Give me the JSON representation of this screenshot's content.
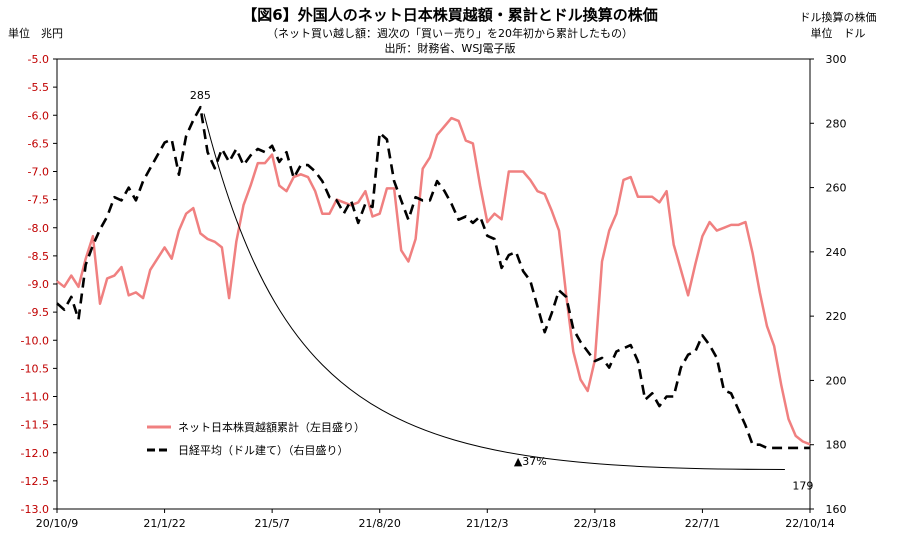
{
  "chart_data": {
    "type": "line",
    "title": "【図6】外国人のネット日本株買越額・累計とドル換算の株価",
    "subtitle": "（ネット買い越し額：週次の「買い－売り」を20年初から累計したもの）",
    "source": "出所：財務省、WSJ電子版",
    "left_axis_label": "単位　兆円",
    "right_axis_label_1": "ドル換算の株価",
    "right_axis_label_2": "単位　ドル",
    "ylim_left": [
      -13.0,
      -5.0
    ],
    "ylim_right": [
      160,
      300
    ],
    "yticks_left": [
      "-5.0",
      "-5.5",
      "-6.0",
      "-6.5",
      "-7.0",
      "-7.5",
      "-8.0",
      "-8.5",
      "-9.0",
      "-9.5",
      "-10.0",
      "-10.5",
      "-11.0",
      "-11.5",
      "-12.0",
      "-12.5",
      "-13.0"
    ],
    "yticks_right": [
      "300",
      "280",
      "260",
      "240",
      "220",
      "200",
      "180",
      "160"
    ],
    "xticks": [
      "20/10/9",
      "21/1/22",
      "21/5/7",
      "21/8/20",
      "21/12/3",
      "22/3/18",
      "22/7/1",
      "22/10/14"
    ],
    "x_range_weeks": [
      0,
      105
    ],
    "grid": false,
    "legend_position": "bottom-left",
    "series": [
      {
        "name": "ネット日本株買越額累計（左目盛り）",
        "axis": "left",
        "color": "#f08080",
        "style": "solid",
        "x": [
          0,
          1,
          2,
          3,
          4,
          5,
          6,
          7,
          8,
          9,
          10,
          11,
          12,
          13,
          14,
          15,
          16,
          17,
          18,
          19,
          20,
          21,
          22,
          23,
          24,
          25,
          26,
          27,
          28,
          29,
          30,
          31,
          32,
          33,
          34,
          35,
          36,
          37,
          38,
          39,
          40,
          41,
          42,
          43,
          44,
          45,
          46,
          47,
          48,
          49,
          50,
          51,
          52,
          53,
          54,
          55,
          56,
          57,
          58,
          59,
          60,
          61,
          62,
          63,
          64,
          65,
          66,
          67,
          68,
          69,
          70,
          71,
          72,
          73,
          74,
          75,
          76,
          77,
          78,
          79,
          80,
          81,
          82,
          83,
          84,
          85,
          86,
          87,
          88,
          89,
          90,
          91,
          92,
          93,
          94,
          95,
          96,
          97,
          98,
          99,
          100,
          101,
          102,
          103,
          104,
          105
        ],
        "values": [
          -8.95,
          -9.05,
          -8.85,
          -9.05,
          -8.55,
          -8.15,
          -9.35,
          -8.9,
          -8.85,
          -8.7,
          -9.2,
          -9.15,
          -9.25,
          -8.75,
          -8.55,
          -8.35,
          -8.55,
          -8.05,
          -7.75,
          -7.65,
          -8.1,
          -8.2,
          -8.25,
          -8.35,
          -9.25,
          -8.25,
          -7.6,
          -7.25,
          -6.85,
          -6.85,
          -6.7,
          -7.25,
          -7.35,
          -7.1,
          -7.05,
          -7.1,
          -7.35,
          -7.75,
          -7.75,
          -7.5,
          -7.55,
          -7.6,
          -7.55,
          -7.35,
          -7.8,
          -7.75,
          -7.3,
          -7.3,
          -8.4,
          -8.6,
          -8.2,
          -6.95,
          -6.75,
          -6.35,
          -6.2,
          -6.05,
          -6.1,
          -6.45,
          -6.5,
          -7.25,
          -7.9,
          -7.75,
          -7.85,
          -7.0,
          -7.0,
          -7.0,
          -7.15,
          -7.35,
          -7.4,
          -7.7,
          -8.05,
          -9.2,
          -10.2,
          -10.7,
          -10.9,
          -10.35,
          -8.6,
          -8.05,
          -7.75,
          -7.15,
          -7.1,
          -7.45,
          -7.45,
          -7.45,
          -7.55,
          -7.35,
          -8.3,
          -8.75,
          -9.2,
          -8.65,
          -8.15,
          -7.9,
          -8.05,
          -8.0,
          -7.95,
          -7.95,
          -7.9,
          -8.45,
          -9.15,
          -9.75,
          -10.1,
          -10.8,
          -11.4,
          -11.7,
          -11.8,
          -11.85
        ]
      },
      {
        "name": "日経平均（ドル建て）（右目盛り）",
        "axis": "right",
        "color": "#000000",
        "style": "dashed",
        "x": [
          0,
          1,
          2,
          3,
          4,
          5,
          6,
          7,
          8,
          9,
          10,
          11,
          12,
          13,
          14,
          15,
          16,
          17,
          18,
          19,
          20,
          21,
          22,
          23,
          24,
          25,
          26,
          27,
          28,
          29,
          30,
          31,
          32,
          33,
          34,
          35,
          36,
          37,
          38,
          39,
          40,
          41,
          42,
          43,
          44,
          45,
          46,
          47,
          48,
          49,
          50,
          51,
          52,
          53,
          54,
          55,
          56,
          57,
          58,
          59,
          60,
          61,
          62,
          63,
          64,
          65,
          66,
          67,
          68,
          69,
          70,
          71,
          72,
          73,
          74,
          75,
          76,
          77,
          78,
          79,
          80,
          81,
          82,
          83,
          84,
          85,
          86,
          87,
          88,
          89,
          90,
          91,
          92,
          93,
          94,
          95,
          96,
          97,
          98,
          99,
          100,
          101,
          102,
          103,
          104,
          105
        ],
        "values": [
          224,
          222,
          226,
          219,
          236,
          242,
          247,
          251,
          257,
          256,
          260,
          256,
          262,
          266,
          270,
          274,
          275,
          264,
          276,
          281,
          285,
          271,
          266,
          272,
          268,
          272,
          267,
          270,
          272,
          271,
          273,
          268,
          271,
          263,
          267,
          267,
          265,
          262,
          257,
          256,
          252,
          256,
          249,
          255,
          254,
          277,
          275,
          262,
          256,
          250,
          257,
          256,
          256,
          262,
          259,
          255,
          250,
          251,
          249,
          251,
          245,
          244,
          235,
          239,
          240,
          234,
          231,
          223,
          215,
          221,
          228,
          226,
          216,
          212,
          209,
          206,
          207,
          204,
          209,
          210,
          211,
          206,
          194,
          196,
          192,
          195,
          195,
          204,
          208,
          209,
          214,
          211,
          207,
          197,
          196,
          191,
          186,
          180,
          180,
          179,
          179,
          179,
          179,
          179,
          179,
          179
        ]
      }
    ],
    "annotations": [
      {
        "text": "285",
        "x": 20,
        "axis": "right",
        "y": 285
      },
      {
        "text": "179",
        "x": 104,
        "axis": "right",
        "y": 172.3
      },
      {
        "text": "▲37%",
        "x": 66,
        "axis": "right",
        "y": 175
      }
    ]
  }
}
